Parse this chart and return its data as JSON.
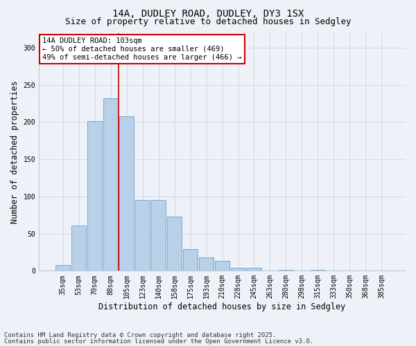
{
  "title1": "14A, DUDLEY ROAD, DUDLEY, DY3 1SX",
  "title2": "Size of property relative to detached houses in Sedgley",
  "xlabel": "Distribution of detached houses by size in Sedgley",
  "ylabel": "Number of detached properties",
  "categories": [
    "35sqm",
    "53sqm",
    "70sqm",
    "88sqm",
    "105sqm",
    "123sqm",
    "140sqm",
    "158sqm",
    "175sqm",
    "193sqm",
    "210sqm",
    "228sqm",
    "245sqm",
    "263sqm",
    "280sqm",
    "298sqm",
    "315sqm",
    "333sqm",
    "350sqm",
    "368sqm",
    "385sqm"
  ],
  "values": [
    8,
    61,
    201,
    232,
    208,
    95,
    95,
    73,
    29,
    18,
    13,
    4,
    4,
    0,
    1,
    0,
    1,
    0,
    0,
    0,
    0
  ],
  "bar_color": "#b8d0e8",
  "bar_edge_color": "#6a9fc8",
  "grid_color": "#d0dcea",
  "background_color": "#eef2f8",
  "annotation_text": "14A DUDLEY ROAD: 103sqm\n← 50% of detached houses are smaller (469)\n49% of semi-detached houses are larger (466) →",
  "annotation_box_color": "#ffffff",
  "annotation_box_edge": "#cc0000",
  "vline_x": 3.5,
  "vline_color": "#cc0000",
  "ylim": [
    0,
    320
  ],
  "yticks": [
    0,
    50,
    100,
    150,
    200,
    250,
    300
  ],
  "footer1": "Contains HM Land Registry data © Crown copyright and database right 2025.",
  "footer2": "Contains public sector information licensed under the Open Government Licence v3.0.",
  "title_fontsize": 10,
  "subtitle_fontsize": 9,
  "tick_fontsize": 7,
  "label_fontsize": 8.5,
  "footer_fontsize": 6.5,
  "annot_fontsize": 7.5
}
